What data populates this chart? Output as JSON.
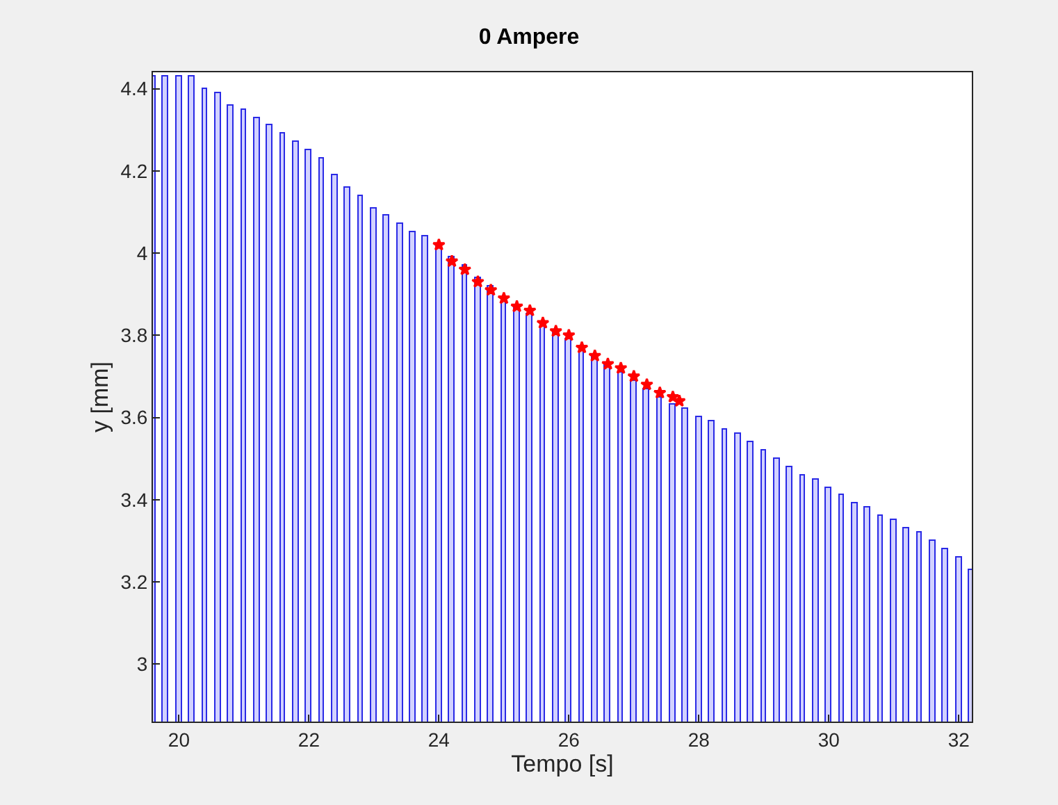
{
  "chart_data": {
    "type": "bar",
    "title": "0 Ampere",
    "xlabel": "Tempo [s]",
    "ylabel": "y [mm]",
    "xlim": [
      19.6,
      32.2
    ],
    "ylim": [
      2.86,
      4.44
    ],
    "xticks": [
      20,
      22,
      24,
      26,
      28,
      30,
      32
    ],
    "yticks": [
      3,
      3.2,
      3.4,
      3.6,
      3.8,
      4,
      4.2,
      4.4
    ],
    "series": [
      {
        "color": "#2a2ae6",
        "x": [
          19.6,
          19.8,
          20.0,
          20.2,
          20.4,
          20.6,
          20.8,
          21.0,
          21.2,
          21.4,
          21.6,
          21.8,
          22.0,
          22.2,
          22.4,
          22.6,
          22.8,
          23.0,
          23.2,
          23.4,
          23.6,
          23.8,
          24.0,
          24.2,
          24.4,
          24.6,
          24.8,
          25.0,
          25.2,
          25.4,
          25.6,
          25.8,
          26.0,
          26.2,
          26.4,
          26.6,
          26.8,
          27.0,
          27.2,
          27.4,
          27.6,
          27.8,
          28.0,
          28.2,
          28.4,
          28.6,
          28.8,
          29.0,
          29.2,
          29.4,
          29.6,
          29.8,
          30.0,
          30.2,
          30.4,
          30.6,
          30.8,
          31.0,
          31.2,
          31.4,
          31.6,
          31.8,
          32.0,
          32.2
        ],
        "values": [
          4.43,
          4.43,
          4.43,
          4.43,
          4.4,
          4.39,
          4.36,
          4.35,
          4.33,
          4.31,
          4.29,
          4.27,
          4.25,
          4.23,
          4.19,
          4.16,
          4.14,
          4.11,
          4.09,
          4.07,
          4.05,
          4.04,
          4.02,
          3.99,
          3.97,
          3.94,
          3.92,
          3.89,
          3.87,
          3.85,
          3.83,
          3.81,
          3.79,
          3.77,
          3.75,
          3.73,
          3.71,
          3.69,
          3.67,
          3.65,
          3.63,
          3.62,
          3.6,
          3.59,
          3.57,
          3.56,
          3.54,
          3.52,
          3.5,
          3.48,
          3.46,
          3.45,
          3.43,
          3.41,
          3.39,
          3.38,
          3.36,
          3.35,
          3.33,
          3.32,
          3.3,
          3.28,
          3.26,
          3.23
        ]
      },
      {
        "type": "scatter",
        "color": "#ff0000",
        "marker": "star",
        "x": [
          24.0,
          24.2,
          24.4,
          24.6,
          24.8,
          25.0,
          25.2,
          25.4,
          25.6,
          25.8,
          26.0,
          26.2,
          26.4,
          26.6,
          26.8,
          27.0,
          27.2,
          27.4,
          27.6,
          27.7
        ],
        "values": [
          4.02,
          3.98,
          3.96,
          3.93,
          3.91,
          3.89,
          3.87,
          3.86,
          3.83,
          3.81,
          3.8,
          3.77,
          3.75,
          3.73,
          3.72,
          3.7,
          3.68,
          3.66,
          3.65,
          3.64
        ]
      }
    ]
  }
}
